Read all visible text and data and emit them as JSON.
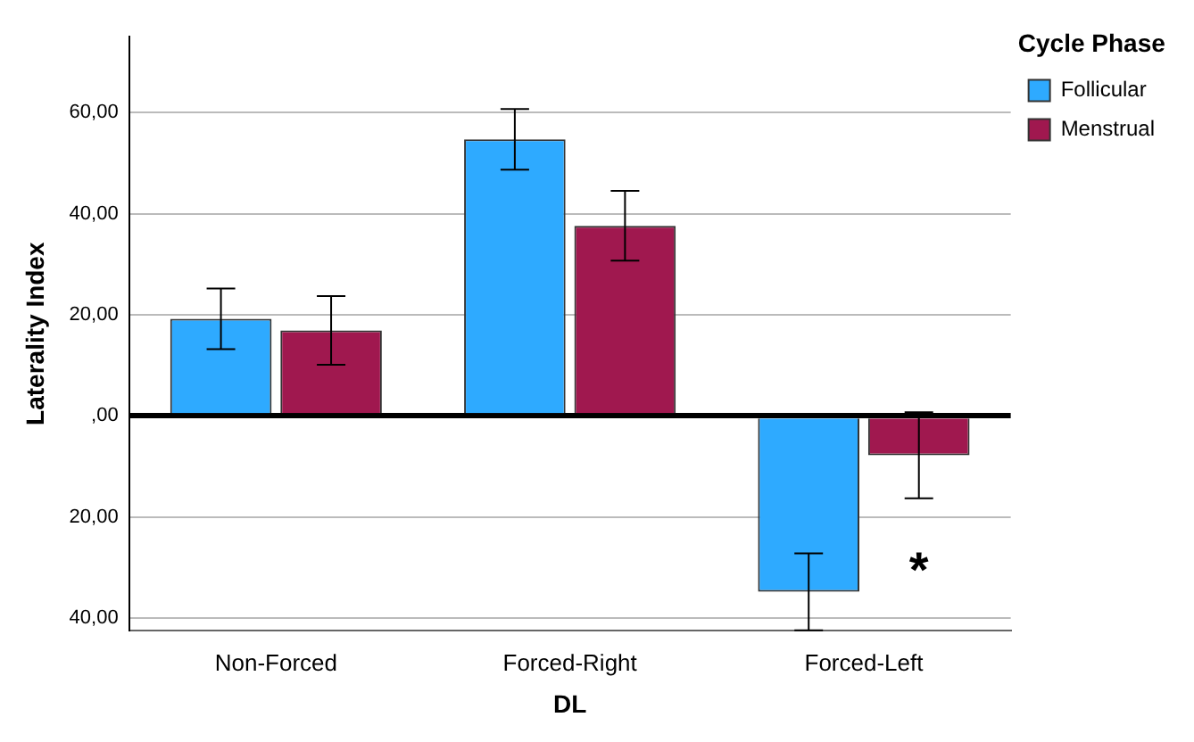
{
  "chart_data": {
    "type": "bar",
    "xlabel": "DL",
    "ylabel": "Laterality Index",
    "legend_title": "Cycle Phase",
    "categories": [
      "Non-Forced",
      "Forced-Right",
      "Forced-Left"
    ],
    "series": [
      {
        "name": "Follicular",
        "color": "#2eaaff",
        "values": [
          19.2,
          54.7,
          -34.8
        ],
        "errors": [
          6,
          6,
          7.6
        ]
      },
      {
        "name": "Menstrual",
        "color": "#a0184f",
        "values": [
          16.9,
          37.6,
          -7.8
        ],
        "errors": [
          6.8,
          6.9,
          8.5
        ]
      }
    ],
    "ylim": [
      -42.5,
      75
    ],
    "yticks": [
      {
        "value": -40,
        "label": "40,00"
      },
      {
        "value": -20,
        "label": "20,00"
      },
      {
        "value": 0,
        "label": ",00"
      },
      {
        "value": 20,
        "label": "20,00"
      },
      {
        "value": 40,
        "label": "40,00"
      },
      {
        "value": 60,
        "label": "60,00"
      }
    ],
    "grid": "y",
    "legend": "top right",
    "annotations": [
      {
        "text": "*",
        "x": "Forced-Left",
        "y": -29
      }
    ]
  }
}
